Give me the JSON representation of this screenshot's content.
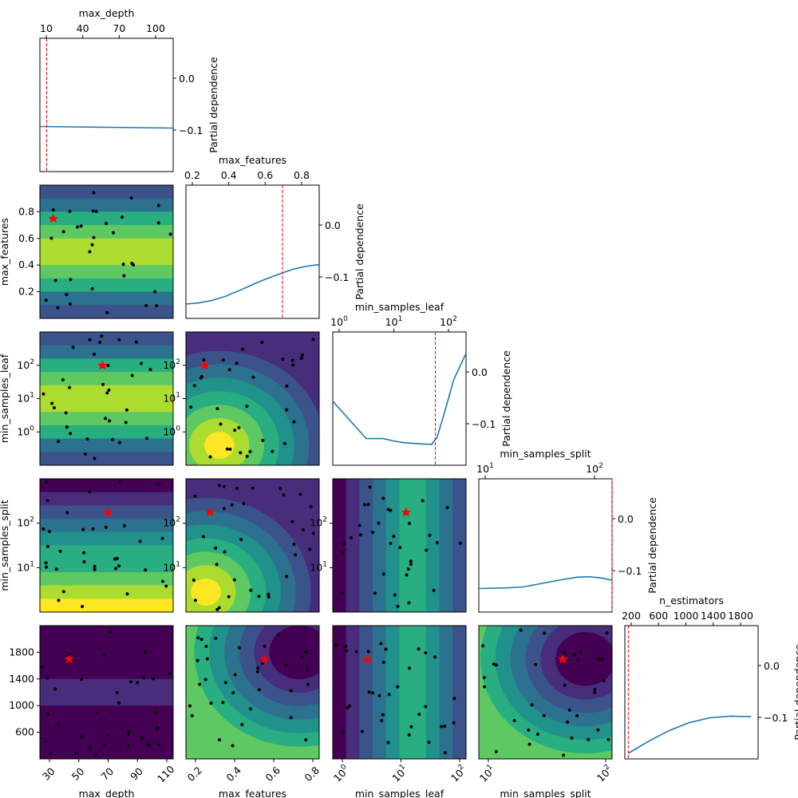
{
  "chart_data": {
    "type": "partial-dependence-matrix",
    "parameters": [
      "max_depth",
      "max_features",
      "min_samples_leaf",
      "min_samples_split",
      "n_estimators"
    ],
    "diagonal_ylabel": "Partial dependence",
    "diagonal_ytick_labels": [
      "0.0",
      "−0.1"
    ],
    "diagonal": [
      {
        "param": "max_depth",
        "scale": "linear",
        "xlim": [
          1,
          119
        ],
        "tick_labels": [
          "10",
          "40",
          "70",
          "100"
        ],
        "ylim": [
          -0.24,
          0.1
        ],
        "best": 7,
        "pd": [
          [
            1,
            -0.125
          ],
          [
            30,
            -0.126
          ],
          [
            60,
            -0.127
          ],
          [
            90,
            -0.128
          ],
          [
            119,
            -0.129
          ]
        ]
      },
      {
        "param": "max_features",
        "scale": "linear",
        "xlim": [
          0.01,
          0.99
        ],
        "tick_labels": [
          "0.2",
          "0.4",
          "0.6",
          "0.8"
        ],
        "ylim": [
          -0.18,
          0.08
        ],
        "best": 0.72,
        "pd": [
          [
            0.01,
            -0.152
          ],
          [
            0.1,
            -0.15
          ],
          [
            0.2,
            -0.145
          ],
          [
            0.3,
            -0.137
          ],
          [
            0.4,
            -0.126
          ],
          [
            0.5,
            -0.114
          ],
          [
            0.6,
            -0.103
          ],
          [
            0.7,
            -0.093
          ],
          [
            0.8,
            -0.084
          ],
          [
            0.9,
            -0.078
          ],
          [
            0.99,
            -0.075
          ]
        ]
      },
      {
        "param": "min_samples_leaf",
        "scale": "log",
        "xlim": [
          1,
          250
        ],
        "tick_labels": [
          "10^0",
          "10^1",
          "10^2"
        ],
        "ylim": [
          -0.18,
          0.07
        ],
        "best": 70,
        "pd": [
          [
            1,
            -0.06
          ],
          [
            4,
            -0.13
          ],
          [
            8,
            -0.13
          ],
          [
            13,
            -0.135
          ],
          [
            20,
            -0.138
          ],
          [
            40,
            -0.14
          ],
          [
            60,
            -0.141
          ],
          [
            75,
            -0.128
          ],
          [
            100,
            -0.085
          ],
          [
            150,
            -0.02
          ],
          [
            250,
            0.03
          ]
        ]
      },
      {
        "param": "min_samples_split",
        "scale": "log",
        "xlim": [
          2,
          250
        ],
        "tick_labels": [
          "10^1",
          "10^2"
        ],
        "ylim": [
          -0.18,
          0.08
        ],
        "best": 250,
        "pd": [
          [
            2,
            -0.134
          ],
          [
            5,
            -0.133
          ],
          [
            10,
            -0.131
          ],
          [
            20,
            -0.124
          ],
          [
            40,
            -0.117
          ],
          [
            70,
            -0.112
          ],
          [
            110,
            -0.111
          ],
          [
            180,
            -0.114
          ],
          [
            250,
            -0.118
          ]
        ]
      },
      {
        "param": "n_estimators",
        "scale": "linear",
        "xlim": [
          80,
          2000
        ],
        "tick_labels": [
          "200",
          "600",
          "1000",
          "1400",
          "1800"
        ],
        "ylim": [
          -0.18,
          0.06
        ],
        "best": 130,
        "pd": [
          [
            130,
            -0.17
          ],
          [
            400,
            -0.15
          ],
          [
            700,
            -0.13
          ],
          [
            1000,
            -0.115
          ],
          [
            1300,
            -0.106
          ],
          [
            1600,
            -0.103
          ],
          [
            1900,
            -0.104
          ]
        ]
      }
    ],
    "pair_panels": [
      {
        "row": "max_features",
        "col": "max_depth",
        "ytick_labels": [
          "0.2",
          "0.4",
          "0.6",
          "0.8"
        ]
      },
      {
        "row": "min_samples_leaf",
        "col": "max_depth",
        "ytick_labels": [
          "10^0",
          "10^1",
          "10^2"
        ]
      },
      {
        "row": "min_samples_leaf",
        "col": "max_features",
        "ytick_labels": [
          "10^0",
          "10^1",
          "10^2"
        ]
      },
      {
        "row": "min_samples_split",
        "col": "max_depth",
        "ytick_labels": [
          "10^1",
          "10^2"
        ]
      },
      {
        "row": "min_samples_split",
        "col": "max_features",
        "ytick_labels": [
          "10^1",
          "10^2"
        ]
      },
      {
        "row": "min_samples_split",
        "col": "min_samples_leaf",
        "ytick_labels": [
          "10^1",
          "10^2"
        ]
      },
      {
        "row": "n_estimators",
        "col": "max_depth",
        "ytick_labels": [
          "600",
          "1000",
          "1400",
          "1800"
        ]
      },
      {
        "row": "n_estimators",
        "col": "max_features",
        "ytick_labels": []
      },
      {
        "row": "n_estimators",
        "col": "min_samples_leaf",
        "ytick_labels": []
      },
      {
        "row": "n_estimators",
        "col": "min_samples_split",
        "ytick_labels": []
      }
    ],
    "row_labels": [
      "max_features",
      "min_samples_leaf",
      "min_samples_split"
    ],
    "bottom_xlabels": [
      "max_depth",
      "max_features",
      "min_samples_leaf",
      "min_samples_split"
    ],
    "bottom_xtick_labels": [
      [
        "30",
        "50",
        "70",
        "90",
        "110"
      ],
      [
        "0.2",
        "0.4",
        "0.6",
        "0.8"
      ],
      [
        "10^0",
        "10^1",
        "10^2"
      ],
      [
        "10^1",
        "10^2"
      ]
    ],
    "colormap": "viridis",
    "contour_colors": [
      "#440154",
      "#472d7b",
      "#3b528b",
      "#2c728e",
      "#21918c",
      "#28ae80",
      "#5ec962",
      "#addc30",
      "#fde725"
    ],
    "sample_marker_color": "#000000",
    "best_marker_color": "#ff0000",
    "pd_line_color": "#1f77b4",
    "best_line_color": "#ff0000"
  }
}
